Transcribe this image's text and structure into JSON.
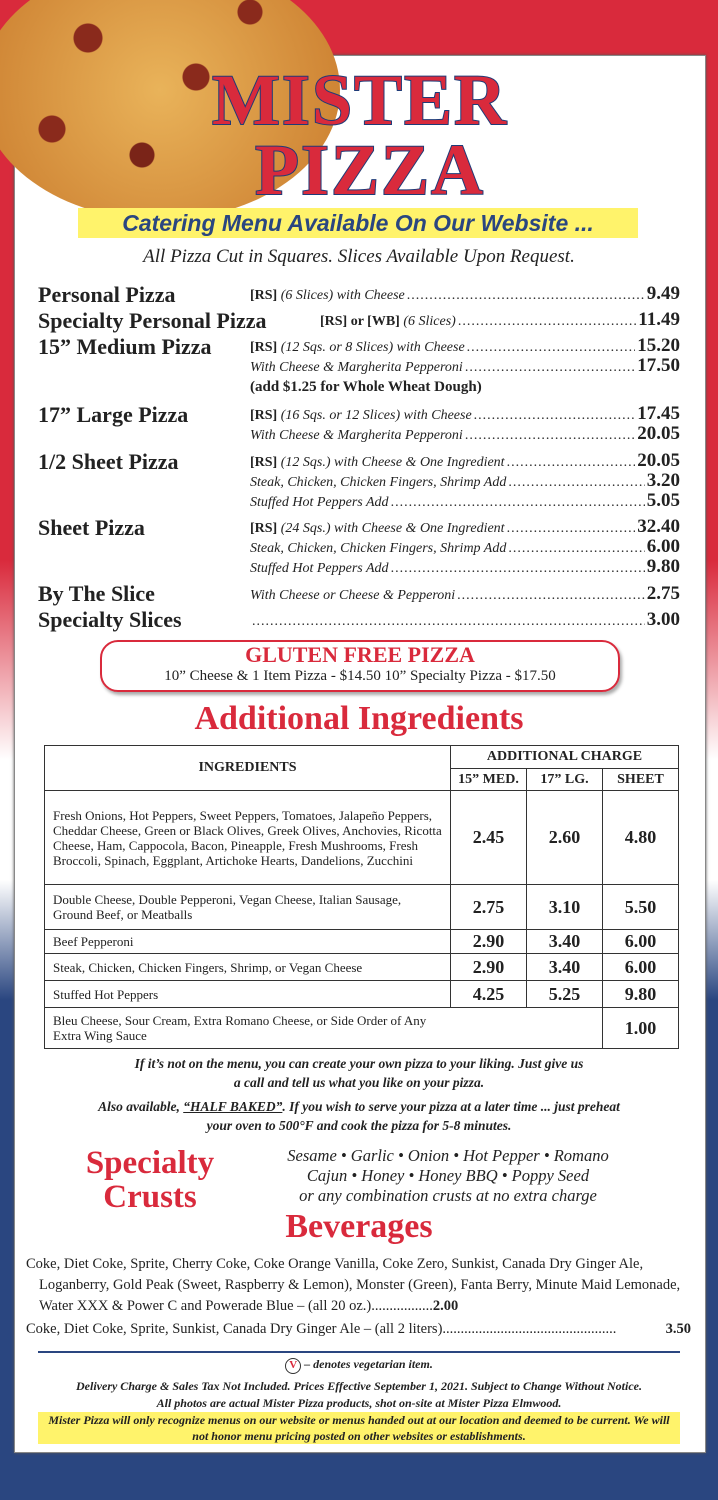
{
  "colors": {
    "red": "#d92a3c",
    "blue": "#2a4680",
    "highlight": "#fff36b"
  },
  "header": {
    "line1": "MISTER",
    "line2": "PIZZA",
    "catering": "Catering Menu Available On Our Website ...",
    "cut_note": "All Pizza Cut in Squares. Slices Available Upon Request."
  },
  "pizzas": [
    {
      "name": "Personal Pizza",
      "lines": [
        {
          "code": "[RS]",
          "desc": "(6 Slices) with Cheese",
          "price": "9.49"
        }
      ]
    },
    {
      "name": "Specialty Personal Pizza",
      "lines": [
        {
          "code": "[RS] or [WB]",
          "desc": "(6 Slices)",
          "price": "11.49"
        }
      ]
    },
    {
      "name": "15” Medium Pizza",
      "lines": [
        {
          "code": "[RS]",
          "desc": "(12 Sqs. or 8 Slices) with Cheese",
          "price": "15.20"
        },
        {
          "desc": "With Cheese & Margherita Pepperoni",
          "price": "17.50"
        }
      ],
      "note": "(add $1.25 for Whole Wheat Dough)"
    },
    {
      "name": "17” Large Pizza",
      "lines": [
        {
          "code": "[RS]",
          "desc": "(16 Sqs. or 12 Slices) with Cheese",
          "price": "17.45"
        },
        {
          "desc": "With Cheese & Margherita Pepperoni",
          "price": "20.05"
        }
      ]
    },
    {
      "name": "1/2 Sheet Pizza",
      "lines": [
        {
          "code": "[RS]",
          "desc": "(12 Sqs.) with Cheese & One Ingredient",
          "price": "20.05"
        },
        {
          "desc": "Steak,  Chicken, Chicken Fingers, Shrimp Add",
          "price": "3.20"
        },
        {
          "desc": "Stuffed Hot Peppers Add",
          "price": "5.05"
        }
      ]
    },
    {
      "name": "Sheet Pizza",
      "lines": [
        {
          "code": "[RS]",
          "desc": "(24 Sqs.) with Cheese & One Ingredient",
          "price": "32.40"
        },
        {
          "desc": "Steak,  Chicken, Chicken Fingers, Shrimp Add",
          "price": "6.00"
        },
        {
          "desc": "Stuffed Hot Peppers Add",
          "price": "9.80"
        }
      ]
    },
    {
      "name": "By The Slice",
      "lines": [
        {
          "desc": "With Cheese or Cheese & Pepperoni",
          "price": "2.75"
        }
      ]
    },
    {
      "name": "Specialty Slices",
      "lines": [
        {
          "desc": "",
          "price": "3.00"
        }
      ]
    }
  ],
  "gluten_free": {
    "title": "GLUTEN FREE PIZZA",
    "text": "10” Cheese & 1 Item Pizza - $14.50   10” Specialty Pizza - $17.50"
  },
  "ingredients": {
    "title": "Additional Ingredients",
    "col_ingredients": "INGREDIENTS",
    "col_group": "ADDITIONAL CHARGE",
    "cols": [
      "15” MED.",
      "17” LG.",
      "SHEET"
    ],
    "rows": [
      {
        "items": "Fresh Onions, Hot Peppers, Sweet Peppers, Tomatoes, Jalapeño Peppers, Cheddar Cheese,  Green or  Black Olives, Greek Olives, Anchovies, Ricotta Cheese, Ham, Cappocola, Bacon, Pineapple, Fresh Mushrooms, Fresh Broccoli, Spinach, Eggplant, Artichoke Hearts, Dandelions, Zucchini",
        "med": "2.45",
        "lg": "2.60",
        "sheet": "4.80"
      },
      {
        "items": "Double Cheese, Double Pepperoni, Vegan Cheese, Italian Sausage, Ground Beef, or Meatballs",
        "med": "2.75",
        "lg": "3.10",
        "sheet": "5.50"
      },
      {
        "items": "Beef Pepperoni",
        "med": "2.90",
        "lg": "3.40",
        "sheet": "6.00"
      },
      {
        "items": "Steak, Chicken, Chicken Fingers, Shrimp, or Vegan Cheese",
        "med": "2.90",
        "lg": "3.40",
        "sheet": "6.00"
      },
      {
        "items": "Stuffed Hot Peppers",
        "med": "4.25",
        "lg": "5.25",
        "sheet": "9.80"
      },
      {
        "items": "Bleu Cheese, Sour Cream, Extra Romano Cheese,  or Side Order of Any Extra Wing Sauce",
        "sheet": "1.00"
      }
    ]
  },
  "notes": {
    "own_pizza": "If it’s not on the menu, you can create your own pizza to your liking. Just give us a call and tell us what you like on your pizza.",
    "half_baked_pre": "Also available, ",
    "half_baked_label": "“HALF BAKED”",
    "half_baked_post": ". If you wish to serve your pizza at a later time ... just preheat your oven to 500°F and cook the pizza for 5-8 minutes."
  },
  "crusts": {
    "title1": "Specialty",
    "title2": "Crusts",
    "line1": "Sesame • Garlic • Onion • Hot Pepper • Romano",
    "line2": "Cajun • Honey • Honey BBQ • Poppy Seed",
    "line3": "or any combination crusts at no extra charge"
  },
  "beverages": {
    "title": "Beverages",
    "item1": "Coke, Diet Coke, Sprite, Cherry Coke, Coke Orange Vanilla, Coke Zero, Sunkist, Canada Dry Ginger Ale, Loganberry, Gold Peak (Sweet, Raspberry & Lemon), Monster (Green), Fanta Berry, Minute Maid Lemonade, Water XXX & Power C and Powerade Blue – (all 20 oz.)",
    "price1": "2.00",
    "item2": "Coke, Diet Coke, Sprite, Sunkist, Canada Dry Ginger Ale – (all 2 liters)",
    "price2": "3.50"
  },
  "footer": {
    "veg_symbol": "V",
    "veg_note": "– denotes vegetarian item.",
    "delivery": "Delivery Charge & Sales Tax Not Included. Prices Effective September 1, 2021.  Subject to Change Without Notice.",
    "photos": "All photos are actual Mister Pizza products, shot on-site at Mister Pizza Elmwood.",
    "disclaimer": "Mister Pizza will only recognize menus on our website or menus handed out at our location and deemed to be current. We will not honor menu pricing posted on other websites or establishments."
  }
}
